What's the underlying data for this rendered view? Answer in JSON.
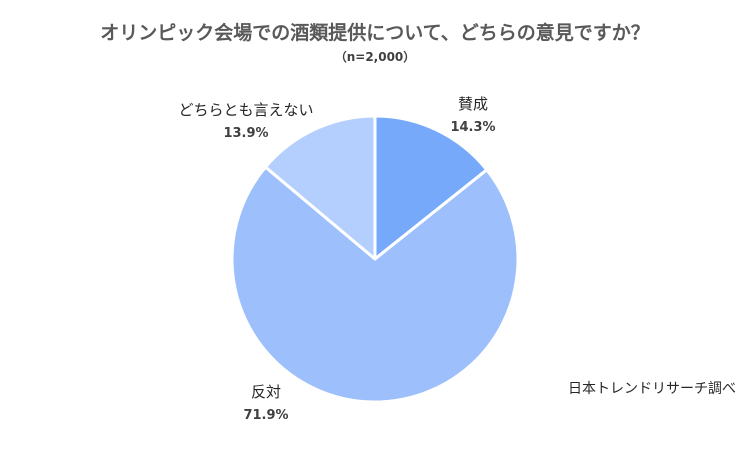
{
  "chart_data": {
    "type": "pie",
    "title": "オリンピック会場での酒類提供について、どちらの意見ですか？",
    "subtitle": "（n=2,000）",
    "categories": [
      "賛成",
      "反対",
      "どちらとも言えない"
    ],
    "values": [
      14.3,
      71.9,
      13.9
    ],
    "value_labels": [
      "14.3%",
      "71.9%",
      "13.9%"
    ],
    "colors": [
      "#77A9FB",
      "#9DC0FC",
      "#B4CFFD"
    ],
    "slice_border_color": "#FFFFFF",
    "start": "12 o'clock",
    "direction": "clockwise"
  },
  "source": "日本トレンドリサーチ調べ"
}
